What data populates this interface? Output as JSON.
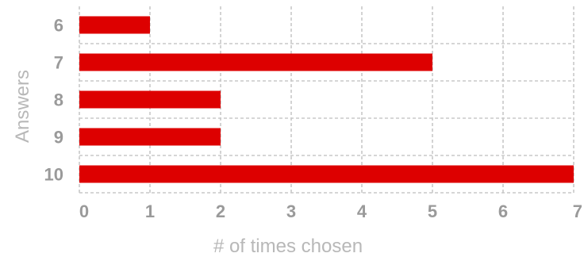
{
  "chart_data": {
    "type": "bar",
    "orientation": "horizontal",
    "categories": [
      "6",
      "7",
      "8",
      "9",
      "10"
    ],
    "values": [
      1,
      5,
      2,
      2,
      7
    ],
    "xlabel": "# of times chosen",
    "ylabel": "Answers",
    "xlim": [
      0,
      7
    ],
    "x_ticks": [
      "0",
      "1",
      "2",
      "3",
      "4",
      "5",
      "6",
      "7"
    ],
    "grid": true,
    "bar_color": "#dd0000",
    "grid_color": "#c8c8c8",
    "label_color": "#9a9a9a"
  }
}
